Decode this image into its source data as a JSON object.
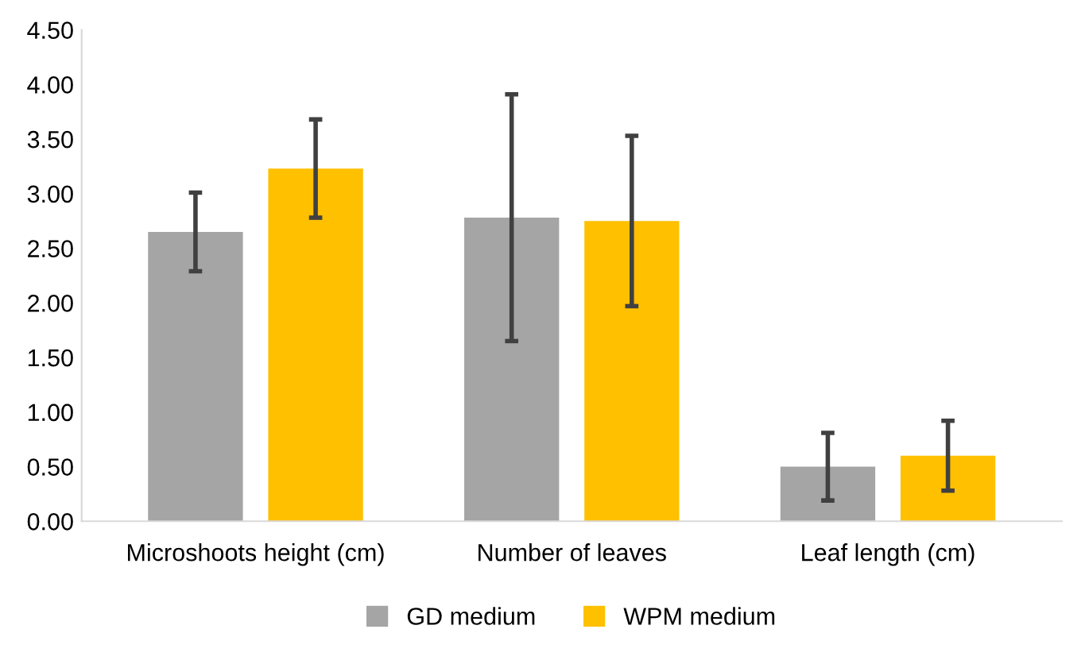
{
  "chart_data": {
    "type": "bar",
    "categories": [
      "Microshoots height (cm)",
      "Number of leaves",
      "Leaf length (cm)"
    ],
    "series": [
      {
        "name": "GD medium",
        "color": "#a5a5a5",
        "values": [
          2.65,
          2.78,
          0.5
        ],
        "errors": [
          0.36,
          1.13,
          0.31
        ]
      },
      {
        "name": "WPM medium",
        "color": "#ffc000",
        "values": [
          3.23,
          2.75,
          0.6
        ],
        "errors": [
          0.45,
          0.78,
          0.32
        ]
      }
    ],
    "ylim": [
      0,
      4.5
    ],
    "yticks": [
      {
        "value": 0,
        "label": "0.00"
      },
      {
        "value": 0.5,
        "label": "0.50"
      },
      {
        "value": 1,
        "label": "1.00"
      },
      {
        "value": 1.5,
        "label": "1.50"
      },
      {
        "value": 2,
        "label": "2.00"
      },
      {
        "value": 2.5,
        "label": "2.50"
      },
      {
        "value": 3,
        "label": "3.00"
      },
      {
        "value": 3.5,
        "label": "3.50"
      },
      {
        "value": 4,
        "label": "4.00"
      },
      {
        "value": 4.5,
        "label": "4.50"
      }
    ],
    "grid": false,
    "legend": "bottom"
  }
}
